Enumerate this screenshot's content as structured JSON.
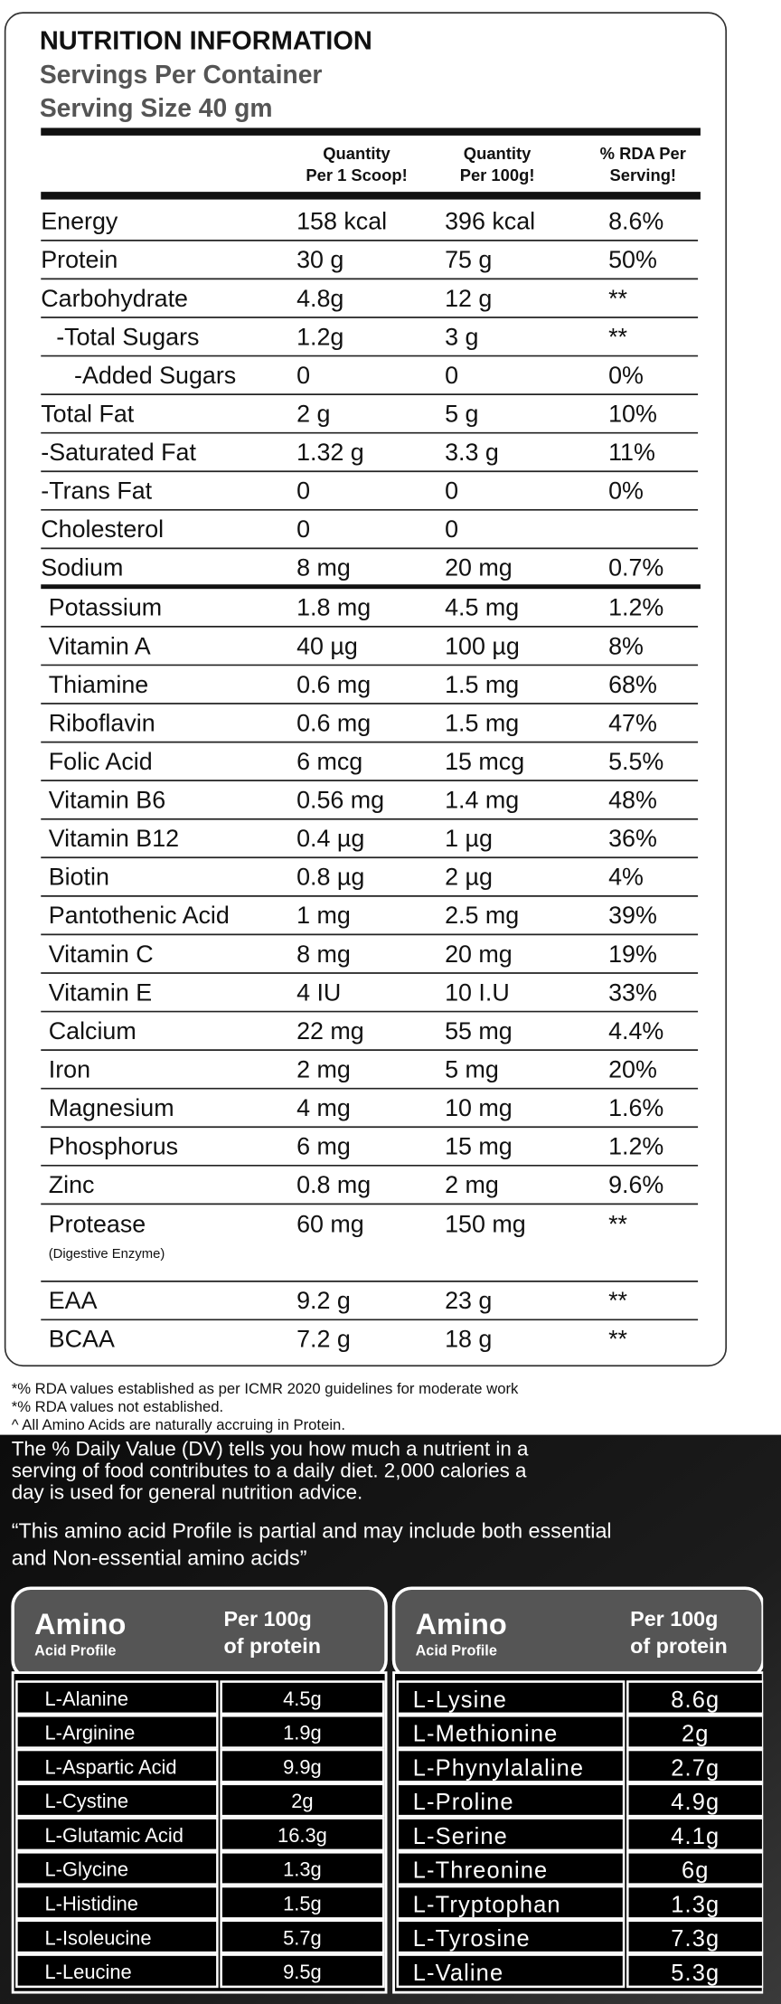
{
  "title": "NUTRITION INFORMATION",
  "servings": "Servings Per Container",
  "serving_size": "Serving Size 40 gm",
  "columns": [
    [
      "Quantity",
      "Per 1 Scoop!"
    ],
    [
      "Quantity",
      "Per 100g!"
    ],
    [
      "% RDA Per",
      "Serving!"
    ]
  ],
  "nutrients": [
    {
      "label": "Energy",
      "scoop": "158 kcal",
      "per100g": "396 kcal",
      "rda": "8.6%"
    },
    {
      "label": "Protein",
      "scoop": "30 g",
      "per100g": "75 g",
      "rda": "50%"
    },
    {
      "label": "Carbohydrate",
      "scoop": "4.8g",
      "per100g": "12 g",
      "rda": "**"
    },
    {
      "label": "-Total Sugars",
      "scoop": "1.2g",
      "per100g": "3 g",
      "rda": "**"
    },
    {
      "label": "-Added Sugars",
      "scoop": "0",
      "per100g": "0",
      "rda": "0%"
    },
    {
      "label": "Total Fat",
      "scoop": "2 g",
      "per100g": "5 g",
      "rda": "10%"
    },
    {
      "label": "-Saturated Fat",
      "scoop": "1.32 g",
      "per100g": "3.3 g",
      "rda": "11%"
    },
    {
      "label": "-Trans Fat",
      "scoop": "0",
      "per100g": "0",
      "rda": "0%"
    },
    {
      "label": "Cholesterol",
      "scoop": "0",
      "per100g": "0"
    },
    {
      "label": "Sodium",
      "scoop": "8 mg",
      "per100g": "20 mg",
      "rda": "0.7%"
    }
  ],
  "micronutrients": [
    {
      "label": "Potassium",
      "scoop": "1.8 mg",
      "per100g": "4.5 mg",
      "rda": "1.2%"
    },
    {
      "label": "Vitamin A",
      "scoop": "40 µg",
      "per100g": "100 µg",
      "rda": "8%"
    },
    {
      "label": "Thiamine",
      "scoop": "0.6 mg",
      "per100g": "1.5 mg",
      "rda": "68%"
    },
    {
      "label": "Riboflavin",
      "scoop": "0.6 mg",
      "per100g": "1.5 mg",
      "rda": "47%"
    },
    {
      "label": "Folic Acid",
      "scoop": "6 mcg",
      "per100g": "15 mcg",
      "rda": "5.5%"
    },
    {
      "label": "Vitamin B6",
      "scoop": "0.56 mg",
      "per100g": "1.4 mg",
      "rda": "48%"
    },
    {
      "label": "Vitamin B12",
      "scoop": "0.4 µg",
      "per100g": "1 µg",
      "rda": "36%"
    },
    {
      "label": "Biotin",
      "scoop": "0.8 µg",
      "per100g": "2 µg",
      "rda": "4%"
    },
    {
      "label": "Pantothenic Acid",
      "scoop": "1 mg",
      "per100g": "2.5 mg",
      "rda": "39%"
    },
    {
      "label": "Vitamin C",
      "scoop": "8 mg",
      "per100g": "20 mg",
      "rda": "19%"
    },
    {
      "label": "Vitamin E",
      "scoop": "4 IU",
      "per100g": "10 I.U",
      "rda": "33%"
    },
    {
      "label": "Calcium",
      "scoop": "22 mg",
      "per100g": "55 mg",
      "rda": "4.4%"
    },
    {
      "label": "Iron",
      "scoop": "2 mg",
      "per100g": "5 mg",
      "rda": "20%"
    },
    {
      "label": "Magnesium",
      "scoop": "4 mg",
      "per100g": "10 mg",
      "rda": "1.6%"
    },
    {
      "label": "Phosphorus",
      "scoop": "6 mg",
      "per100g": "15 mg",
      "rda": "1.2%"
    },
    {
      "label": "Zinc",
      "scoop": "0.8 mg",
      "per100g": "2 mg",
      "rda": "9.6%"
    },
    {
      "label": "Protease",
      "note": "(Digestive Enzyme)",
      "scoop": "60 mg",
      "per100g": "150 mg",
      "rda": "**"
    },
    {
      "label": "EAA",
      "scoop": "9.2 g",
      "per100g": "23 g",
      "rda": "**"
    },
    {
      "label": "BCAA",
      "scoop": "7.2 g",
      "per100g": "18 g",
      "rda": "**"
    }
  ],
  "footnotes": [
    "*% RDA values established as per ICMR 2020 guidelines for moderate work",
    "*% RDA values not established.",
    "^ All Amino Acids are naturally accruing in Protein."
  ],
  "dv_text": [
    "The % Daily Value (DV) tells you how much a nutrient in a",
    "serving of food contributes to a daily diet. 2,000 calories a",
    "day is used for general nutrition advice."
  ],
  "amino_note": [
    "“This amino acid Profile is partial and may include both essential",
    "and Non-essential amino acids”"
  ],
  "amino_tables": [
    {
      "title": "Amino",
      "subtitle": "Acid Profile",
      "column": [
        "Per 100g",
        "of protein"
      ],
      "rows": [
        [
          "L-Alanine",
          "4.5g"
        ],
        [
          "L-Arginine",
          "1.9g"
        ],
        [
          "L-Aspartic Acid",
          "9.9g"
        ],
        [
          "L-Cystine",
          "2g"
        ],
        [
          "L-Glutamic Acid",
          "16.3g"
        ],
        [
          "L-Glycine",
          "1.3g"
        ],
        [
          "L-Histidine",
          "1.5g"
        ],
        [
          "L-Isoleucine",
          "5.7g"
        ],
        [
          "L-Leucine",
          "9.5g"
        ]
      ]
    },
    {
      "title": "Amino",
      "subtitle": "Acid Profile",
      "column": [
        "Per 100g",
        "of protein"
      ],
      "rows": [
        [
          "L-Lysine",
          "8.6g"
        ],
        [
          "L-Methionine",
          "2g"
        ],
        [
          "L-Phynylalaline",
          "2.7g"
        ],
        [
          "L-Proline",
          "4.9g"
        ],
        [
          "L-Serine",
          "4.1g"
        ],
        [
          "L-Threonine",
          "6g"
        ],
        [
          "L-Tryptophan",
          "1.3g"
        ],
        [
          "L-Tyrosine",
          "7.3g"
        ],
        [
          "L-Valine",
          "5.3g"
        ]
      ]
    }
  ]
}
